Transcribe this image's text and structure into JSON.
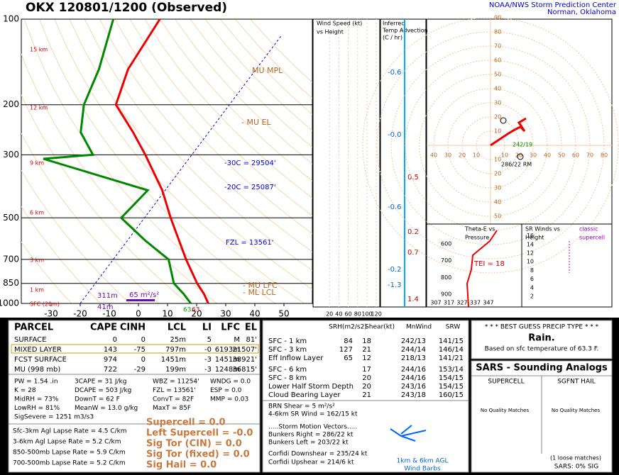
{
  "header": {
    "title": "OKX   120801/1200  (Observed)",
    "org": "NOAA/NWS Storm Prediction Center",
    "location": "Norman, Oklahoma"
  },
  "skewt": {
    "pressure_ticks": [
      100,
      200,
      300,
      500,
      700,
      850,
      1000
    ],
    "temp_ticks": [
      -30,
      -20,
      -10,
      0,
      10,
      20,
      30,
      40,
      50
    ],
    "heights": [
      "15 km",
      "12 km",
      "9 km",
      "6 km",
      "3 km",
      "1 km",
      "SFC (20m)"
    ],
    "annotations": [
      "MU MPL",
      "- MU EL",
      "-30C = 29504'",
      "-20C = 25087'",
      "FZL = 13561'",
      "- MU LFC",
      "- ML LCL",
      "311m",
      "65 m²/s²",
      "41m",
      "63",
      "63"
    ],
    "temperature": {
      "pressure": [
        1000,
        925,
        850,
        700,
        500,
        400,
        300,
        250,
        200,
        150,
        100
      ],
      "values": [
        24,
        20,
        15,
        5,
        -11,
        -21,
        -36,
        -46,
        -59,
        -64,
        -66
      ]
    },
    "dewpoint": {
      "pressure": [
        1000,
        925,
        850,
        700,
        600,
        500,
        400,
        310,
        300,
        250,
        200,
        150,
        100
      ],
      "values": [
        18,
        13,
        7,
        -1,
        -14,
        -28,
        -26,
        -70,
        -54,
        -64,
        -70,
        -74,
        -82
      ]
    }
  },
  "wind_panel": {
    "title": [
      "Wind Speed (kt)",
      "vs Height"
    ],
    "ticks": [
      20,
      40,
      60,
      80,
      100,
      120
    ]
  },
  "advection": {
    "title": [
      "Inferred",
      "Temp Advection",
      "(C / hr)"
    ],
    "values": [
      "-0.6",
      "-0.0",
      "0.5",
      "-0.6",
      "0.2",
      "0.7",
      "-0.2",
      "-1.3",
      "1.4"
    ]
  },
  "hodograph": {
    "xticks": [
      {
        "value": -40,
        "label": "40"
      },
      {
        "value": -30,
        "label": "30"
      },
      {
        "value": -20,
        "label": "20"
      },
      {
        "value": -10,
        "label": "10"
      },
      10,
      20,
      30,
      40,
      50,
      60,
      70,
      80
    ],
    "yticks": [
      90,
      80,
      70,
      60,
      50,
      40,
      30,
      20,
      10,
      {
        "value": -10,
        "label": "10"
      },
      {
        "value": -20,
        "label": "20"
      },
      {
        "value": -30,
        "label": "30"
      },
      {
        "value": -40,
        "label": "40"
      },
      {
        "value": -50,
        "label": "50"
      }
    ],
    "u": [
      0,
      6,
      12,
      17,
      21,
      24,
      20,
      25
    ],
    "v": [
      0,
      4,
      8,
      11,
      13,
      10,
      16,
      19
    ],
    "labels": [
      "286/22 RM",
      "242/19"
    ]
  },
  "theta_e": {
    "title": [
      "Theta-E vs",
      "Pressure"
    ],
    "tei": "TEI = 18",
    "yticks": [
      600,
      700,
      800,
      900
    ],
    "xticks": [
      307,
      317,
      327,
      337,
      347
    ]
  },
  "sr_winds": {
    "title": [
      "SR Winds vs",
      "Height"
    ],
    "yticks": [
      16,
      14,
      12,
      10,
      8,
      6,
      4,
      2
    ],
    "note": [
      "classic",
      "supercell"
    ]
  },
  "parcel": {
    "header": [
      "PARCEL",
      "CAPE",
      "CINH",
      "LCL",
      "LI",
      "LFC",
      "EL"
    ],
    "rows": [
      [
        "SURFACE",
        "0",
        "0",
        "25m",
        "5",
        "M",
        "81'"
      ],
      [
        "MIXED LAYER",
        "143",
        "-75",
        "797m",
        "-0",
        "6193m",
        "21507'"
      ],
      [
        "FCST SURFACE",
        "974",
        "0",
        "1451m",
        "-3",
        "1451m",
        "38921'"
      ],
      [
        "MU   (998 mb)",
        "722",
        "-29",
        "199m",
        "-3",
        "1248m",
        "36815'"
      ]
    ],
    "indices": [
      [
        "PW = 1.54 .in",
        "3CAPE = 31 J/kg",
        "WBZ = 11254'",
        "WNDG = 0.0"
      ],
      [
        "K = 28",
        "DCAPE = 503 J/kg",
        "FZL = 13561'",
        "ESP = 0.0"
      ],
      [
        "MidRH = 73%",
        "DownT = 62 F",
        "ConvT = 82F",
        "MMP = 0.03"
      ],
      [
        "LowRH = 81%",
        "MeanW = 13.0 g/kg",
        "MaxT = 85F"
      ],
      [
        "SigSevere = 1251 m3/s3"
      ]
    ],
    "lapse": [
      "Sfc-3km Agl Lapse Rate = 4.5 C/km",
      "3-6km Agl Lapse Rate = 5.2 C/km",
      "850-500mb Lapse Rate = 5.9 C/km",
      "700-500mb Lapse Rate = 5.2 C/km"
    ],
    "params": [
      "Supercell = 0.0",
      "Left Supercell = -0.0",
      "Sig Tor (CIN) = 0.0",
      "Sig Tor (fixed) = 0.0",
      "Sig Hail = 0.0"
    ]
  },
  "kinematics": {
    "header": [
      "SRH(m2/s2)",
      "Shear(kt)",
      "MnWind",
      "SRW"
    ],
    "rows": [
      {
        "label": "SFC - 1 km",
        "srh": "84",
        "shear": "18",
        "mnwind": "242/13",
        "srw": "141/15"
      },
      {
        "label": "SFC - 3 km",
        "srh": "127",
        "shear": "21",
        "mnwind": "244/14",
        "srw": "146/14"
      },
      {
        "label": "Eff Inflow Layer",
        "srh": "65",
        "shear": "12",
        "mnwind": "218/13",
        "srw": "141/21"
      },
      {
        "label": "SFC - 6 km",
        "shear": "17",
        "mnwind": "244/16",
        "srw": "153/14"
      },
      {
        "label": "SFC - 8 km",
        "shear": "20",
        "mnwind": "244/16",
        "srw": "154/15"
      },
      {
        "label": "Lower Half Storm Depth",
        "shear": "20",
        "mnwind": "243/16",
        "srw": "154/15"
      },
      {
        "label": "Cloud Bearing Layer",
        "shear": "21",
        "mnwind": "243/18",
        "srw": "160/15"
      }
    ],
    "extra": [
      "BRN Shear = 5 m²/s²",
      "4-6km SR Wind =        162/15 kt",
      ".....Storm Motion Vectors.....",
      "Bunkers Right =        286/22 kt",
      "Bunkers Left =         203/22 kt",
      "Corfidi Downshear =  235/24 kt",
      "Corfidi Upshear =       214/6 kt"
    ],
    "barb_caption": [
      "1km & 6km AGL",
      "Wind Barbs"
    ]
  },
  "precip": {
    "title": "* * * BEST GUESS PRECIP TYPE * * *",
    "type": "Rain.",
    "note": "Based on sfc temperature of 63.3 F."
  },
  "sars": {
    "title": "SARS - Sounding Analogs",
    "columns": [
      "SUPERCELL",
      "SGFNT HAIL"
    ],
    "matches": [
      "No Quality Matches",
      "No Quality Matches"
    ],
    "loose": "(1 loose matches)",
    "sig": "SARS:  0% SIG"
  }
}
